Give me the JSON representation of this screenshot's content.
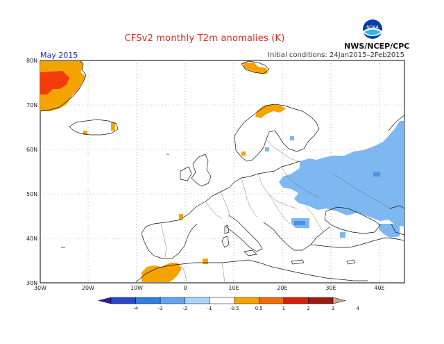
{
  "title": "CFSv2 monthly T2m anomalies (K)",
  "agency": "NWS/NCEP/CPC",
  "logo_text": "NOAA",
  "month": "May 2015",
  "initial_conditions": "Initial conditions: 24Jan2015–2Feb2015",
  "lat_labels": [
    "80N",
    "70N",
    "60N",
    "50N",
    "40N",
    "30N"
  ],
  "lon_labels": [
    "30W",
    "20W",
    "10W",
    "0",
    "10E",
    "20E",
    "30E",
    "40E"
  ],
  "colorbar": {
    "levels": [
      "-4",
      "-3",
      "-2",
      "-1",
      "-0.5",
      "0.5",
      "1",
      "2",
      "3",
      "4"
    ],
    "colors": [
      "#3a1aa0",
      "#2a46c8",
      "#2f7fe0",
      "#5fa6f0",
      "#a8d4fa",
      "#ffffff",
      "#f5a300",
      "#f26b00",
      "#d81e0a",
      "#9c1a14",
      "#c9a898"
    ]
  },
  "colors": {
    "positive_05_1": "#f5a300",
    "positive_1_2": "#f23c0a",
    "negative_05_1": "#7db8f0",
    "negative_1_2": "#4d8fe0",
    "title_red": "#e8241c",
    "month_blue": "#1d1dcc"
  }
}
